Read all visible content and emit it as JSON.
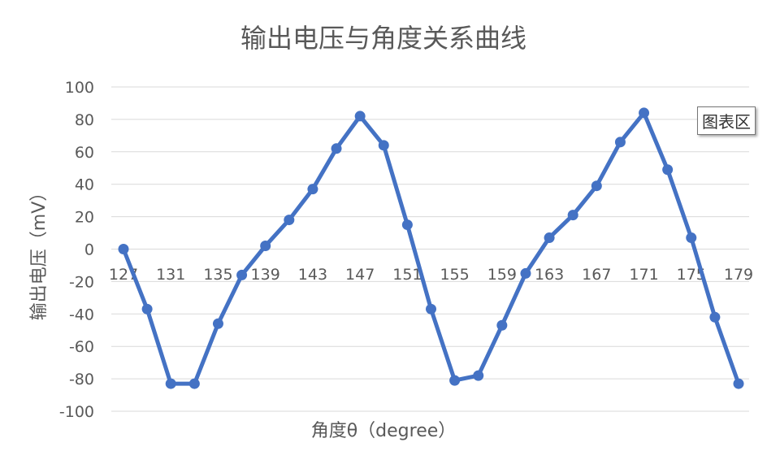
{
  "chart_data": {
    "type": "line",
    "title": "输出电压与角度关系曲线",
    "xlabel": "角度θ（degree）",
    "ylabel": "输出电压（mV）",
    "ylim": [
      -100,
      100
    ],
    "y_ticks": [
      -100,
      -80,
      -60,
      -40,
      -20,
      0,
      20,
      40,
      60,
      80,
      100
    ],
    "x_tick_labels": [
      "127",
      "131",
      "135",
      "139",
      "143",
      "147",
      "151",
      "155",
      "159",
      "163",
      "167",
      "171",
      "175",
      "179"
    ],
    "grid": true,
    "color": "#4472C4",
    "series": [
      {
        "x": [
          127,
          129,
          131,
          133,
          135,
          137,
          139,
          141,
          143,
          145,
          147,
          149,
          151,
          153,
          155,
          157,
          159,
          161,
          163,
          165,
          167,
          169,
          171,
          173,
          175,
          177,
          179
        ],
        "values": [
          0,
          -37,
          -83,
          -83,
          -46,
          -16,
          2,
          18,
          37,
          62,
          82,
          64,
          15,
          -37,
          -81,
          -78,
          -47,
          -15,
          7,
          21,
          39,
          66,
          84,
          49,
          7,
          -42,
          -83
        ]
      }
    ]
  },
  "tooltip_label": "图表区"
}
